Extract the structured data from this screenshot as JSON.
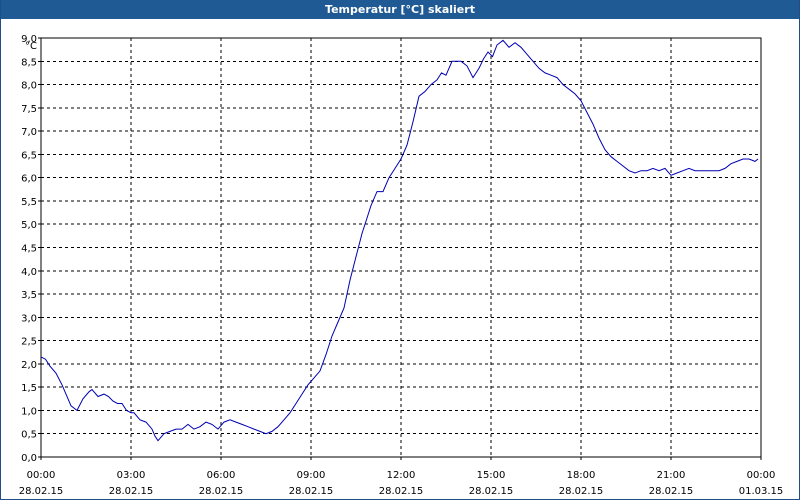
{
  "window": {
    "title": "Temperatur [°C] skaliert"
  },
  "chart_data": {
    "type": "line",
    "title": "Temperatur [°C] skaliert",
    "unit": "°C",
    "xlabel": "",
    "ylabel": "",
    "ylim": [
      0.0,
      9.0
    ],
    "yticks": [
      "0,0",
      "0,5",
      "1,0",
      "1,5",
      "2,0",
      "2,5",
      "3,0",
      "3,5",
      "4,0",
      "4,5",
      "5,0",
      "5,5",
      "6,0",
      "6,5",
      "7,0",
      "7,5",
      "8,0",
      "8,5",
      "9,0"
    ],
    "xlim": [
      0,
      24
    ],
    "xticks": [
      {
        "time": "00:00",
        "date": "28.02.15"
      },
      {
        "time": "03:00",
        "date": "28.02.15"
      },
      {
        "time": "06:00",
        "date": "28.02.15"
      },
      {
        "time": "09:00",
        "date": "28.02.15"
      },
      {
        "time": "12:00",
        "date": "28.02.15"
      },
      {
        "time": "15:00",
        "date": "28.02.15"
      },
      {
        "time": "18:00",
        "date": "28.02.15"
      },
      {
        "time": "21:00",
        "date": "28.02.15"
      },
      {
        "time": "00:00",
        "date": "01.03.15"
      }
    ],
    "grid": true,
    "line_color": "#0000b4",
    "series": [
      {
        "x": [
          0.0,
          0.15,
          0.3,
          0.5,
          0.7,
          0.9,
          1.0,
          1.2,
          1.4,
          1.6,
          1.7,
          1.9,
          2.1,
          2.25,
          2.4,
          2.55,
          2.7,
          2.85,
          3.0,
          3.1,
          3.3,
          3.5,
          3.7,
          3.8,
          3.9,
          4.1,
          4.3,
          4.5,
          4.7,
          4.9,
          5.1,
          5.3,
          5.5,
          5.7,
          5.9,
          6.1,
          6.3,
          6.5,
          6.7,
          6.9,
          7.1,
          7.3,
          7.5,
          7.7,
          7.9,
          8.1,
          8.3,
          8.5,
          8.7,
          8.9,
          9.1,
          9.3,
          9.5,
          9.7,
          9.9,
          10.1,
          10.3,
          10.5,
          10.7,
          10.85,
          11.0,
          11.2,
          11.4,
          11.6,
          11.8,
          12.0,
          12.2,
          12.4,
          12.6,
          12.8,
          13.0,
          13.2,
          13.35,
          13.5,
          13.7,
          13.9,
          14.0,
          14.2,
          14.4,
          14.6,
          14.75,
          14.9,
          15.05,
          15.2,
          15.4,
          15.6,
          15.8,
          16.0,
          16.2,
          16.4,
          16.6,
          16.8,
          17.0,
          17.2,
          17.4,
          17.6,
          17.8,
          18.0,
          18.2,
          18.4,
          18.6,
          18.8,
          19.0,
          19.2,
          19.4,
          19.6,
          19.8,
          20.0,
          20.2,
          20.4,
          20.6,
          20.8,
          21.0,
          21.2,
          21.4,
          21.6,
          21.8,
          22.0,
          22.2,
          22.4,
          22.6,
          22.8,
          23.0,
          23.2,
          23.4,
          23.6,
          23.8,
          23.9
        ],
        "y": [
          2.15,
          2.1,
          1.95,
          1.8,
          1.55,
          1.25,
          1.1,
          1.0,
          1.25,
          1.4,
          1.45,
          1.3,
          1.35,
          1.3,
          1.2,
          1.15,
          1.15,
          1.0,
          0.95,
          0.95,
          0.8,
          0.75,
          0.6,
          0.45,
          0.35,
          0.5,
          0.55,
          0.6,
          0.6,
          0.7,
          0.6,
          0.65,
          0.75,
          0.7,
          0.6,
          0.75,
          0.8,
          0.75,
          0.7,
          0.65,
          0.6,
          0.55,
          0.5,
          0.55,
          0.65,
          0.8,
          0.95,
          1.15,
          1.35,
          1.55,
          1.7,
          1.85,
          2.2,
          2.6,
          2.9,
          3.2,
          3.8,
          4.3,
          4.8,
          5.1,
          5.4,
          5.7,
          5.7,
          6.0,
          6.2,
          6.4,
          6.7,
          7.2,
          7.75,
          7.85,
          8.0,
          8.1,
          8.25,
          8.2,
          8.5,
          8.5,
          8.5,
          8.4,
          8.15,
          8.35,
          8.55,
          8.7,
          8.6,
          8.85,
          8.95,
          8.8,
          8.9,
          8.8,
          8.65,
          8.5,
          8.35,
          8.25,
          8.2,
          8.15,
          8.0,
          7.9,
          7.8,
          7.65,
          7.4,
          7.15,
          6.85,
          6.6,
          6.45,
          6.35,
          6.25,
          6.15,
          6.1,
          6.15,
          6.15,
          6.2,
          6.15,
          6.2,
          6.05,
          6.1,
          6.15,
          6.2,
          6.15,
          6.15,
          6.15,
          6.15,
          6.15,
          6.2,
          6.3,
          6.35,
          6.4,
          6.4,
          6.35,
          6.4
        ]
      }
    ]
  }
}
